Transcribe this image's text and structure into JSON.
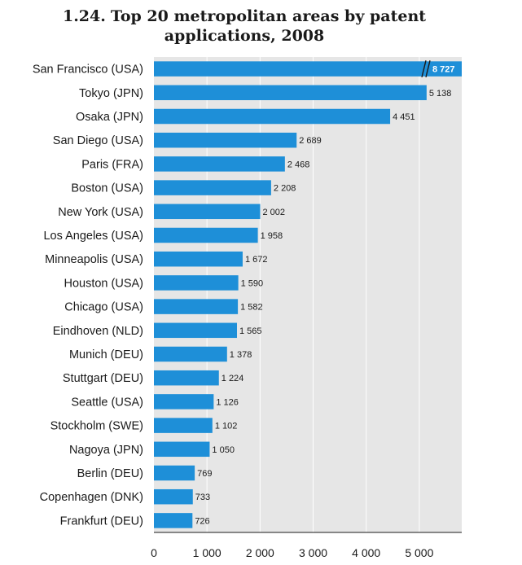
{
  "figure": {
    "number": "1.24.",
    "title": "Top 20 metropolitan areas by patent applications, 2008"
  },
  "colors": {
    "bar": "#1e8fd8",
    "plot_background": "#e6e6e6",
    "gridline": "#ffffff"
  },
  "chart_data": {
    "type": "bar",
    "orientation": "horizontal",
    "title": "1.24. Top 20 metropolitan areas by patent applications, 2008",
    "xlabel": "",
    "ylabel": "",
    "xlim": [
      0,
      5800
    ],
    "xticks": [
      0,
      1000,
      2000,
      3000,
      4000,
      5000
    ],
    "xtick_labels": [
      "0",
      "1 000",
      "2 000",
      "3 000",
      "4 000",
      "5 000"
    ],
    "grid": true,
    "axis_break": "San Francisco (USA) bar is truncated with a break mark",
    "categories": [
      "San Francisco (USA)",
      "Tokyo (JPN)",
      "Osaka (JPN)",
      "San Diego (USA)",
      "Paris (FRA)",
      "Boston (USA)",
      "New York (USA)",
      "Los Angeles (USA)",
      "Minneapolis (USA)",
      "Houston (USA)",
      "Chicago (USA)",
      "Eindhoven (NLD)",
      "Munich (DEU)",
      "Stuttgart (DEU)",
      "Seattle (USA)",
      "Stockholm (SWE)",
      "Nagoya (JPN)",
      "Berlin (DEU)",
      "Copenhagen (DNK)",
      "Frankfurt (DEU)"
    ],
    "values": [
      8727,
      5138,
      4451,
      2689,
      2468,
      2208,
      2002,
      1958,
      1672,
      1590,
      1582,
      1565,
      1378,
      1224,
      1126,
      1102,
      1050,
      769,
      733,
      726
    ],
    "value_labels": [
      "8 727",
      "5 138",
      "4 451",
      "2 689",
      "2 468",
      "2 208",
      "2 002",
      "1 958",
      "1 672",
      "1 590",
      "1 582",
      "1 565",
      "1 378",
      "1 224",
      "1 126",
      "1 102",
      "1 050",
      "769",
      "733",
      "726"
    ]
  }
}
